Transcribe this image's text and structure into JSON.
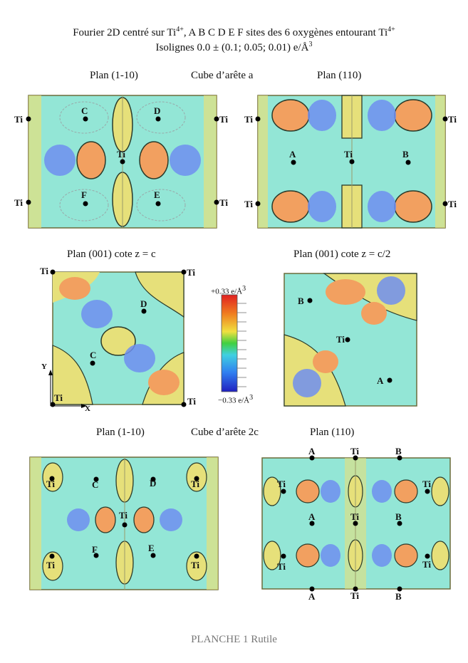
{
  "title": {
    "line1_prefix": "Fourier 2D centré sur Ti",
    "line1_sup": "4+",
    "line1_mid": ", A B C D E F sites des 6 oxygènes entourant Ti",
    "line1_sup2": "4+",
    "line2": "Isolignes 0.0 ± (0.1; 0.05; 0.01) e/Å",
    "line2_sup": "3"
  },
  "row1": {
    "left": "Plan (1-10)",
    "center": "Cube d’arête a",
    "right": "Plan (110)"
  },
  "row2": {
    "left": "Plan (001) cote z = c",
    "right": "Plan (001) cote z = c/2"
  },
  "row3": {
    "left": "Plan (1-10)",
    "center": "Cube d’arête 2c",
    "right": "Plan (110)"
  },
  "colorbar": {
    "max": "+0.33 e/Å",
    "min": "−0.33 e/Å",
    "unit_sup": "3"
  },
  "axes": {
    "y": "Y",
    "x": "X"
  },
  "atoms": {
    "ti": "Ti",
    "a": "A",
    "b": "B",
    "c": "C",
    "d": "D",
    "e": "E",
    "f": "F"
  },
  "footer": "PLANCHE 1  Rutile",
  "colors": {
    "bg": "#93e6d6",
    "positive": "#f2a060",
    "negative": "#5a7de8",
    "yellow": "#e6e07a",
    "green": "#aee07a",
    "frame": "#6b6b3a"
  }
}
